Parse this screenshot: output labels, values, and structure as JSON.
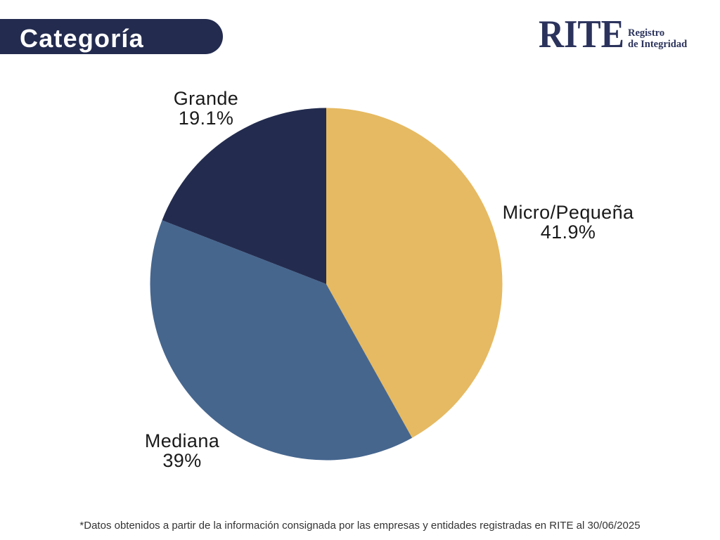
{
  "page": {
    "background": "#ffffff",
    "title_badge": {
      "label": "Categoría",
      "bg_color": "#232b4f",
      "text_color": "#ffffff"
    },
    "logo": {
      "wordmark": "RITE",
      "tagline_line1": "Registro",
      "tagline_line2": "de Integridad",
      "color": "#2b335c"
    },
    "footnote": "*Datos obtenidos a partir de la información consignada por las empresas y entidades registradas en RITE al 30/06/2025"
  },
  "chart_data": {
    "type": "pie",
    "title": "Categoría",
    "start_angle_deg": 0,
    "direction": "clockwise",
    "legend": "none",
    "labels_position": "outside",
    "slices": [
      {
        "label": "Micro/Pequeña",
        "value": 41.9,
        "display": "41.9%",
        "color": "#e6ba62"
      },
      {
        "label": "Mediana",
        "value": 39.0,
        "display": "39%",
        "color": "#46668e"
      },
      {
        "label": "Grande",
        "value": 19.1,
        "display": "19.1%",
        "color": "#232c4f"
      }
    ]
  }
}
